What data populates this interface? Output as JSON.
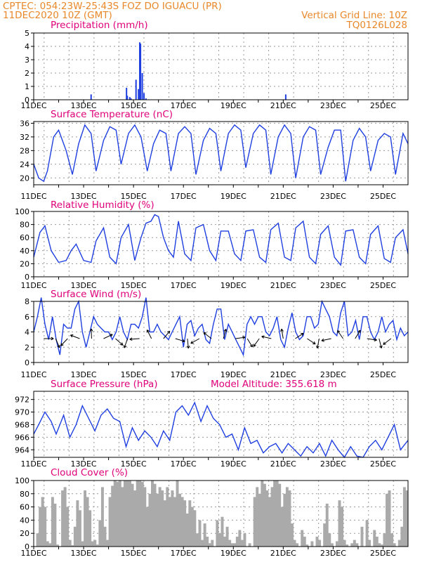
{
  "header": {
    "line1_left": "CPTEC:  054:23W-25:43S  FOZ DO IGUACU (PR)",
    "line2_left": "11DEC2020 10Z (GMT)",
    "line2_right": "Vertical Grid Line: 10Z",
    "line3_right": "TQ0126L028"
  },
  "colors": {
    "header": "#e8882a",
    "title": "#e0007a",
    "line": "#1f3fe0",
    "cloud": "#aaaaaa",
    "grid": "#9a9a9a"
  },
  "chart_data": [
    {
      "type": "bar",
      "title": "Precipitation (mm/h)",
      "x_unit": "days since 11DEC2020 00Z",
      "ylim": [
        0,
        5
      ],
      "yticks": [
        "0",
        "1",
        "2",
        "3",
        "4",
        "5"
      ],
      "xticks": [
        "11DEC",
        "13DEC",
        "15DEC",
        "17DEC",
        "19DEC",
        "21DEC",
        "23DEC",
        "25DEC"
      ],
      "grid": true,
      "x": [
        2.3,
        3.72,
        3.75,
        3.85,
        3.9,
        4.1,
        4.2,
        4.25,
        4.28,
        4.35,
        4.42,
        4.5,
        10.1
      ],
      "values": [
        0.4,
        0.9,
        0.3,
        0.2,
        0.1,
        1.5,
        0.8,
        4.3,
        4.2,
        2.0,
        0.5,
        0.1,
        0.4
      ]
    },
    {
      "type": "line",
      "title": "Surface Temperature (nC)",
      "ylim": [
        18,
        36.5
      ],
      "yticks": [
        "20",
        "24",
        "28",
        "32",
        "36"
      ],
      "xticks": [
        "11DEC",
        "13DEC",
        "15DEC",
        "17DEC",
        "19DEC",
        "21DEC",
        "23DEC",
        "25DEC"
      ],
      "grid": true,
      "x": [
        0.0,
        0.2,
        0.4,
        0.55,
        0.8,
        1.0,
        1.3,
        1.55,
        1.8,
        2.05,
        2.3,
        2.5,
        2.8,
        3.05,
        3.3,
        3.5,
        3.8,
        4.05,
        4.3,
        4.55,
        4.8,
        5.05,
        5.3,
        5.5,
        5.8,
        6.05,
        6.3,
        6.5,
        6.8,
        7.05,
        7.3,
        7.5,
        7.8,
        8.05,
        8.3,
        8.5,
        8.8,
        9.05,
        9.3,
        9.5,
        9.8,
        10.05,
        10.3,
        10.5,
        10.8,
        11.05,
        11.3,
        11.5,
        11.8,
        12.05,
        12.3,
        12.5,
        12.8,
        13.05,
        13.3,
        13.5,
        13.8,
        14.05,
        14.3,
        14.5,
        14.8,
        15.0
      ],
      "values": [
        24,
        20,
        19,
        22,
        32,
        34,
        28,
        21,
        30,
        35.5,
        33,
        22,
        31,
        35,
        34,
        24,
        33,
        35.5,
        32,
        22,
        30,
        34,
        33,
        22,
        33,
        35,
        33,
        21,
        31,
        34.5,
        33,
        22,
        33,
        35.5,
        34,
        23,
        33,
        35.5,
        34,
        21,
        32,
        35.5,
        33,
        20,
        32,
        35,
        34,
        21,
        29,
        34,
        34,
        19,
        31,
        34.5,
        32,
        22,
        31,
        33,
        32,
        21,
        33,
        30
      ]
    },
    {
      "type": "line",
      "title": "Relative Humidity (%)",
      "ylim": [
        0,
        100
      ],
      "yticks": [
        "0",
        "20",
        "40",
        "60",
        "80",
        "100"
      ],
      "xticks": [
        "11DEC",
        "13DEC",
        "15DEC",
        "17DEC",
        "19DEC",
        "21DEC",
        "23DEC",
        "25DEC"
      ],
      "grid": true,
      "x": [
        0.0,
        0.25,
        0.45,
        0.7,
        1.0,
        1.3,
        1.5,
        1.7,
        2.0,
        2.3,
        2.5,
        2.8,
        3.05,
        3.3,
        3.5,
        3.8,
        4.05,
        4.3,
        4.5,
        4.7,
        4.85,
        5.0,
        5.2,
        5.4,
        5.6,
        5.8,
        6.05,
        6.3,
        6.5,
        6.8,
        7.05,
        7.3,
        7.5,
        7.8,
        8.05,
        8.3,
        8.5,
        8.8,
        9.05,
        9.3,
        9.5,
        9.8,
        10.05,
        10.3,
        10.5,
        10.8,
        11.05,
        11.3,
        11.5,
        11.8,
        12.05,
        12.3,
        12.5,
        12.8,
        13.05,
        13.3,
        13.5,
        13.8,
        14.05,
        14.3,
        14.5,
        14.8,
        15.0
      ],
      "values": [
        30,
        68,
        78,
        40,
        22,
        25,
        40,
        50,
        25,
        22,
        55,
        75,
        30,
        20,
        60,
        80,
        25,
        60,
        82,
        85,
        95,
        92,
        60,
        40,
        30,
        85,
        35,
        25,
        75,
        80,
        40,
        25,
        70,
        70,
        35,
        25,
        70,
        72,
        30,
        22,
        72,
        82,
        30,
        25,
        75,
        85,
        30,
        20,
        65,
        78,
        30,
        18,
        70,
        72,
        30,
        20,
        65,
        78,
        28,
        22,
        60,
        72,
        35
      ]
    },
    {
      "type": "line",
      "title": "Surface Wind (m/s)",
      "ylim": [
        0,
        8
      ],
      "yticks": [
        "0",
        "2",
        "4",
        "6",
        "8"
      ],
      "xticks": [
        "11DEC",
        "13DEC",
        "15DEC",
        "17DEC",
        "19DEC",
        "21DEC",
        "23DEC",
        "25DEC"
      ],
      "grid": true,
      "x": [
        0.0,
        0.15,
        0.3,
        0.45,
        0.6,
        0.75,
        0.9,
        1.05,
        1.2,
        1.35,
        1.5,
        1.65,
        1.8,
        1.95,
        2.1,
        2.25,
        2.4,
        2.55,
        2.7,
        2.85,
        3.0,
        3.15,
        3.3,
        3.45,
        3.6,
        3.75,
        3.9,
        4.05,
        4.2,
        4.35,
        4.5,
        4.65,
        4.8,
        4.95,
        5.1,
        5.25,
        5.4,
        5.55,
        5.7,
        5.85,
        6.0,
        6.15,
        6.3,
        6.45,
        6.6,
        6.75,
        6.9,
        7.05,
        7.2,
        7.35,
        7.5,
        7.65,
        7.8,
        7.95,
        8.1,
        8.25,
        8.4,
        8.55,
        8.7,
        8.85,
        9.0,
        9.15,
        9.3,
        9.45,
        9.6,
        9.75,
        9.9,
        10.05,
        10.2,
        10.35,
        10.5,
        10.65,
        10.8,
        10.95,
        11.1,
        11.25,
        11.4,
        11.55,
        11.7,
        11.85,
        12.0,
        12.15,
        12.3,
        12.45,
        12.6,
        12.75,
        12.9,
        13.05,
        13.2,
        13.35,
        13.5,
        13.65,
        13.8,
        13.95,
        14.1,
        14.25,
        14.4,
        14.55,
        14.7,
        14.85,
        15.0
      ],
      "values": [
        4,
        6,
        8.5,
        5,
        3,
        6,
        3,
        1,
        5,
        4.5,
        4.5,
        7,
        8,
        4,
        2,
        4,
        6,
        5,
        4.5,
        4,
        4,
        3,
        4,
        6,
        4,
        3,
        5,
        5,
        4.5,
        6,
        8.5,
        4,
        4,
        5,
        4,
        3.5,
        3,
        4,
        5,
        6,
        2,
        5,
        5.5,
        3.5,
        4.5,
        5,
        3,
        2.5,
        5,
        7,
        7,
        3,
        5,
        4,
        3,
        2,
        1,
        5,
        6,
        5,
        6,
        6,
        4,
        3.5,
        4.5,
        6,
        3,
        2,
        4.5,
        6.5,
        4,
        3,
        3.5,
        6,
        6,
        4.5,
        5,
        8,
        7,
        6,
        4,
        3.5,
        6.5,
        8,
        3.5,
        4,
        5.5,
        3,
        6,
        6,
        4,
        3,
        4,
        6,
        4,
        5,
        5.5,
        3,
        4.5,
        3.5,
        4
      ]
    },
    {
      "type": "line",
      "title": "Surface Pressure (hPa)",
      "annotation": "Model Altitude: 355.618  m",
      "ylim": [
        962.8,
        973.3
      ],
      "yticks": [
        "964",
        "966",
        "968",
        "970",
        "972"
      ],
      "xticks": [
        "11DEC",
        "13DEC",
        "15DEC",
        "17DEC",
        "19DEC",
        "21DEC",
        "23DEC",
        "25DEC"
      ],
      "grid": true,
      "x": [
        0.0,
        0.2,
        0.45,
        0.7,
        0.9,
        1.2,
        1.45,
        1.7,
        1.95,
        2.2,
        2.45,
        2.7,
        2.95,
        3.2,
        3.45,
        3.7,
        3.95,
        4.2,
        4.45,
        4.7,
        4.95,
        5.2,
        5.45,
        5.7,
        5.95,
        6.2,
        6.45,
        6.7,
        6.95,
        7.2,
        7.45,
        7.7,
        7.95,
        8.2,
        8.45,
        8.7,
        8.95,
        9.2,
        9.45,
        9.7,
        9.95,
        10.2,
        10.45,
        10.7,
        10.95,
        11.2,
        11.45,
        11.7,
        11.95,
        12.2,
        12.45,
        12.7,
        12.95,
        13.2,
        13.45,
        13.7,
        13.95,
        14.2,
        14.45,
        14.7,
        15.0
      ],
      "values": [
        966.5,
        968,
        970,
        968.5,
        966.5,
        969.5,
        966,
        968,
        971,
        969,
        967,
        969.5,
        970.5,
        969,
        968.5,
        964.5,
        967.5,
        965.5,
        967,
        966,
        964.5,
        967,
        965.5,
        970,
        971,
        969.5,
        971.5,
        968.5,
        971,
        969,
        968,
        966,
        966.5,
        964,
        967.5,
        965,
        965.5,
        963.5,
        964.5,
        965,
        963.5,
        965,
        964,
        963,
        964.5,
        963.5,
        965,
        963,
        965.5,
        964,
        962.8,
        964.5,
        963,
        962.8,
        964.5,
        965.5,
        964,
        966,
        968,
        964,
        965.5
      ]
    },
    {
      "type": "bar",
      "title": "Cloud Cover (%)",
      "ylim": [
        0,
        100
      ],
      "yticks": [
        "0",
        "20",
        "40",
        "60",
        "80",
        "100"
      ],
      "xticks": [
        "11DEC",
        "13DEC",
        "15DEC",
        "17DEC",
        "19DEC",
        "21DEC",
        "23DEC",
        "25DEC"
      ],
      "grid": true,
      "x": [
        0.0,
        0.1,
        0.2,
        0.3,
        0.4,
        0.5,
        0.6,
        0.7,
        0.8,
        0.9,
        1.0,
        1.1,
        1.2,
        1.3,
        1.4,
        1.5,
        1.6,
        1.7,
        1.8,
        1.9,
        2.0,
        2.1,
        2.2,
        2.3,
        2.4,
        2.5,
        2.6,
        2.7,
        2.8,
        2.9,
        3.0,
        3.1,
        3.2,
        3.3,
        3.4,
        3.5,
        3.6,
        3.7,
        3.8,
        3.9,
        4.0,
        4.1,
        4.2,
        4.3,
        4.4,
        4.5,
        4.6,
        4.7,
        4.8,
        4.9,
        5.0,
        5.1,
        5.2,
        5.3,
        5.4,
        5.5,
        5.6,
        5.7,
        5.8,
        5.9,
        6.0,
        6.1,
        6.2,
        6.3,
        6.4,
        6.5,
        6.6,
        6.7,
        6.8,
        6.9,
        7.0,
        7.1,
        7.2,
        7.3,
        7.4,
        7.5,
        7.6,
        7.7,
        7.8,
        7.9,
        8.0,
        8.1,
        8.2,
        8.3,
        8.4,
        8.5,
        8.6,
        8.7,
        8.8,
        8.9,
        9.0,
        9.1,
        9.2,
        9.3,
        9.4,
        9.5,
        9.6,
        9.7,
        9.8,
        9.9,
        10.0,
        10.1,
        10.2,
        10.3,
        10.4,
        10.5,
        10.6,
        10.7,
        10.8,
        10.9,
        11.0,
        11.1,
        11.2,
        11.3,
        11.4,
        11.5,
        11.6,
        11.7,
        11.8,
        11.9,
        12.0,
        12.1,
        12.2,
        12.3,
        12.4,
        12.5,
        12.6,
        12.7,
        12.8,
        12.9,
        13.0,
        13.1,
        13.2,
        13.3,
        13.4,
        13.5,
        13.6,
        13.7,
        13.8,
        13.9,
        14.0,
        14.1,
        14.2,
        14.3,
        14.4,
        14.5,
        14.6,
        14.7,
        14.8,
        14.9
      ],
      "values": [
        0,
        20,
        60,
        75,
        60,
        8,
        5,
        75,
        65,
        3,
        0,
        85,
        90,
        60,
        10,
        2,
        30,
        70,
        55,
        8,
        85,
        75,
        55,
        8,
        10,
        3,
        40,
        90,
        30,
        10,
        75,
        92,
        100,
        98,
        100,
        90,
        100,
        100,
        100,
        95,
        85,
        100,
        100,
        98,
        90,
        60,
        80,
        100,
        95,
        80,
        90,
        85,
        70,
        90,
        75,
        85,
        75,
        100,
        80,
        75,
        70,
        50,
        70,
        60,
        55,
        20,
        40,
        10,
        35,
        15,
        5,
        10,
        0,
        40,
        20,
        45,
        15,
        30,
        10,
        5,
        5,
        15,
        25,
        10,
        20,
        0,
        5,
        0,
        75,
        90,
        80,
        100,
        95,
        85,
        75,
        90,
        100,
        100,
        95,
        60,
        80,
        90,
        85,
        35,
        10,
        5,
        0,
        25,
        15,
        3,
        0,
        8,
        0,
        15,
        10,
        0,
        35,
        65,
        20,
        5,
        0,
        8,
        70,
        60,
        10,
        3,
        0,
        5,
        10,
        5,
        0,
        30,
        0,
        40,
        10,
        0,
        25,
        15,
        5,
        3,
        20,
        80,
        85,
        20,
        5,
        0,
        10,
        30,
        90,
        85
      ]
    }
  ]
}
